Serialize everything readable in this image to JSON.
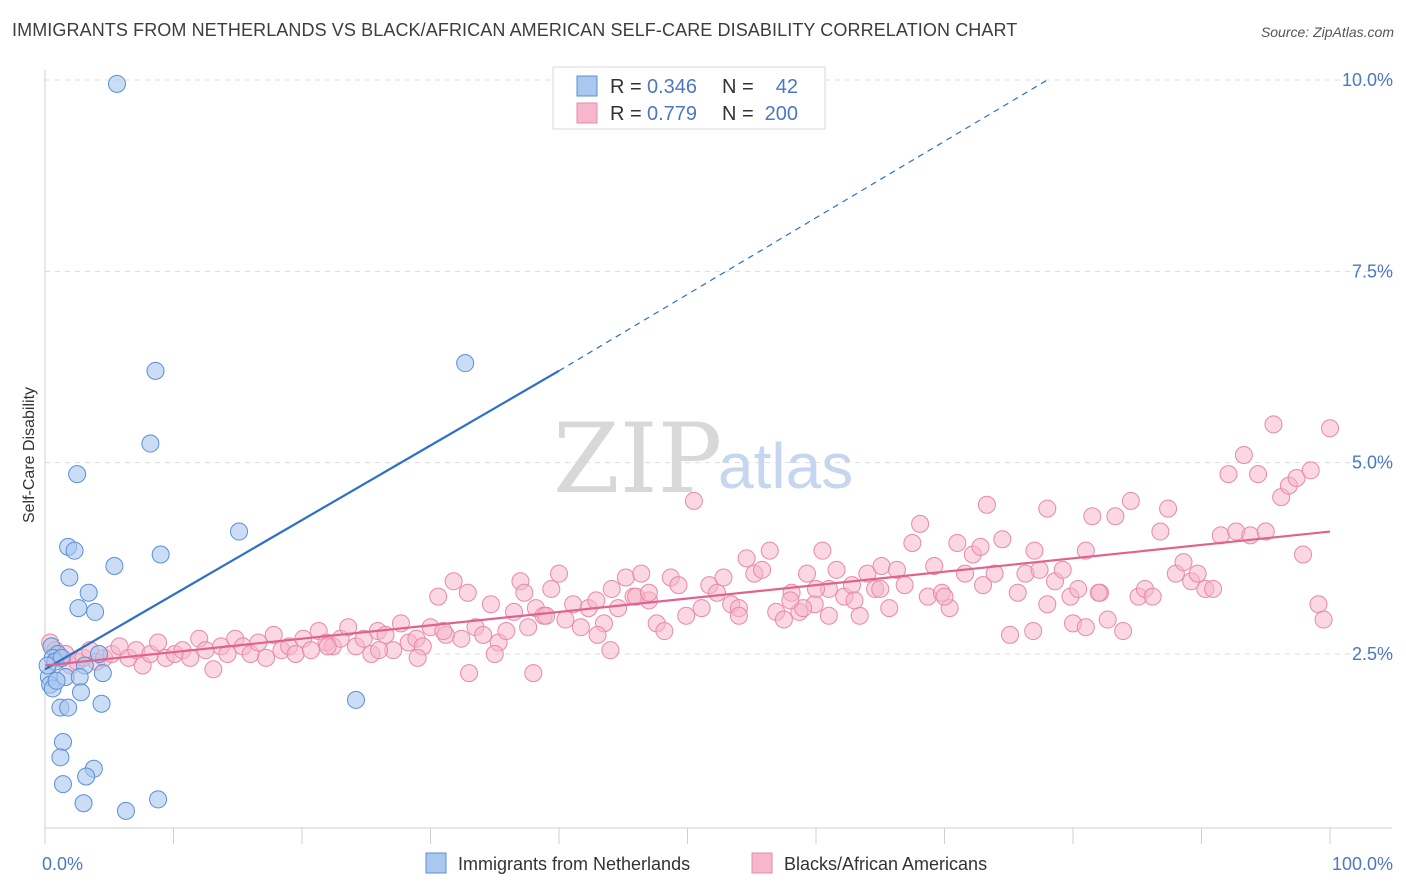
{
  "title": "IMMIGRANTS FROM NETHERLANDS VS BLACK/AFRICAN AMERICAN SELF-CARE DISABILITY CORRELATION CHART",
  "source": "Source: ZipAtlas.com",
  "watermark": {
    "zip": "ZIP",
    "atlas": "atlas"
  },
  "colors": {
    "blue_fill": "#a9c7ef",
    "blue_stroke": "#5a8fd6",
    "blue_line": "#2e6fc9",
    "pink_fill": "#f6b6cb",
    "pink_stroke": "#e889a9",
    "pink_line": "#e0628e",
    "tick_text": "#4d77c4",
    "grid": "#dddddd"
  },
  "legend": {
    "rows": [
      {
        "r_label": "R = ",
        "r_value": "0.346",
        "n_label": "N = ",
        "n_value": "42"
      },
      {
        "r_label": "R = ",
        "r_value": "0.779",
        "n_label": "N = ",
        "n_value": "200"
      }
    ]
  },
  "bottom_legend": [
    "Immigrants from Netherlands",
    "Blacks/African Americans"
  ],
  "chart_data": {
    "type": "scatter",
    "title": "IMMIGRANTS FROM NETHERLANDS VS BLACK/AFRICAN AMERICAN SELF-CARE DISABILITY CORRELATION CHART",
    "xlabel": "",
    "ylabel": "Self-Care Disability",
    "xlim": [
      0,
      100
    ],
    "ylim": [
      0,
      10.5
    ],
    "x_tick_labels": [
      {
        "value": 0,
        "label": "0.0%"
      },
      {
        "value": 100,
        "label": "100.0%"
      }
    ],
    "y_tick_labels": [
      {
        "value": 2.5,
        "label": "2.5%"
      },
      {
        "value": 5.0,
        "label": "5.0%"
      },
      {
        "value": 7.5,
        "label": "7.5%"
      },
      {
        "value": 10.0,
        "label": "10.0%"
      }
    ],
    "x_minor_ticks": [
      0,
      10,
      20,
      30,
      40,
      50,
      60,
      70,
      80,
      90,
      100
    ],
    "grid": true,
    "legend_position": "top-center",
    "series": [
      {
        "name": "Immigrants from Netherlands",
        "R": 0.346,
        "N": 42,
        "trend": {
          "x0": 0,
          "y0": 2.3,
          "x1": 40,
          "y1": 6.2,
          "extend_to_x": 78,
          "extend_y": 10.0
        },
        "points": [
          [
            5.6,
            9.95
          ],
          [
            8.6,
            6.2
          ],
          [
            8.2,
            5.25
          ],
          [
            2.5,
            4.85
          ],
          [
            1.8,
            3.9
          ],
          [
            2.3,
            3.85
          ],
          [
            9.0,
            3.8
          ],
          [
            5.4,
            3.65
          ],
          [
            1.9,
            3.5
          ],
          [
            3.4,
            3.3
          ],
          [
            2.6,
            3.1
          ],
          [
            3.9,
            3.05
          ],
          [
            15.1,
            4.1
          ],
          [
            32.7,
            6.3
          ],
          [
            0.5,
            2.6
          ],
          [
            1.0,
            2.5
          ],
          [
            0.6,
            2.45
          ],
          [
            0.8,
            2.4
          ],
          [
            1.3,
            2.45
          ],
          [
            4.2,
            2.5
          ],
          [
            3.1,
            2.35
          ],
          [
            0.3,
            2.2
          ],
          [
            1.6,
            2.2
          ],
          [
            2.7,
            2.2
          ],
          [
            4.5,
            2.25
          ],
          [
            0.4,
            2.1
          ],
          [
            0.6,
            2.05
          ],
          [
            2.8,
            2.0
          ],
          [
            4.4,
            1.85
          ],
          [
            1.2,
            1.8
          ],
          [
            1.8,
            1.8
          ],
          [
            24.2,
            1.9
          ],
          [
            1.4,
            1.35
          ],
          [
            3.8,
            1.0
          ],
          [
            1.2,
            1.15
          ],
          [
            3.2,
            0.9
          ],
          [
            1.4,
            0.8
          ],
          [
            3.0,
            0.55
          ],
          [
            6.3,
            0.45
          ],
          [
            8.8,
            0.6
          ],
          [
            0.2,
            2.35
          ],
          [
            0.9,
            2.15
          ]
        ]
      },
      {
        "name": "Blacks/African Americans",
        "R": 0.779,
        "N": 200,
        "trend": {
          "x0": 0,
          "y0": 2.35,
          "x1": 100,
          "y1": 4.1
        },
        "points": [
          [
            0.4,
            2.65
          ],
          [
            0.8,
            2.55
          ],
          [
            1.2,
            2.45
          ],
          [
            1.6,
            2.5
          ],
          [
            2.0,
            2.35
          ],
          [
            2.5,
            2.4
          ],
          [
            3.0,
            2.45
          ],
          [
            3.5,
            2.55
          ],
          [
            4.0,
            2.4
          ],
          [
            4.6,
            2.45
          ],
          [
            5.2,
            2.5
          ],
          [
            5.8,
            2.6
          ],
          [
            6.5,
            2.45
          ],
          [
            7.1,
            2.55
          ],
          [
            7.6,
            2.35
          ],
          [
            8.2,
            2.5
          ],
          [
            8.8,
            2.65
          ],
          [
            9.4,
            2.45
          ],
          [
            10.1,
            2.5
          ],
          [
            10.7,
            2.55
          ],
          [
            11.3,
            2.45
          ],
          [
            12.0,
            2.7
          ],
          [
            12.5,
            2.55
          ],
          [
            13.1,
            2.3
          ],
          [
            13.7,
            2.6
          ],
          [
            14.2,
            2.5
          ],
          [
            14.8,
            2.7
          ],
          [
            15.4,
            2.6
          ],
          [
            16.0,
            2.5
          ],
          [
            16.6,
            2.65
          ],
          [
            17.2,
            2.45
          ],
          [
            17.8,
            2.75
          ],
          [
            18.4,
            2.55
          ],
          [
            19.0,
            2.6
          ],
          [
            19.5,
            2.5
          ],
          [
            20.1,
            2.7
          ],
          [
            20.7,
            2.55
          ],
          [
            21.3,
            2.8
          ],
          [
            21.9,
            2.65
          ],
          [
            22.4,
            2.6
          ],
          [
            23.0,
            2.7
          ],
          [
            23.6,
            2.85
          ],
          [
            24.2,
            2.6
          ],
          [
            24.8,
            2.7
          ],
          [
            25.4,
            2.5
          ],
          [
            25.9,
            2.8
          ],
          [
            26.5,
            2.75
          ],
          [
            27.1,
            2.55
          ],
          [
            27.7,
            2.9
          ],
          [
            28.3,
            2.65
          ],
          [
            28.9,
            2.7
          ],
          [
            29.4,
            2.6
          ],
          [
            30.0,
            2.85
          ],
          [
            30.6,
            3.25
          ],
          [
            31.2,
            2.75
          ],
          [
            31.8,
            3.45
          ],
          [
            32.4,
            2.7
          ],
          [
            32.9,
            3.3
          ],
          [
            33.5,
            2.85
          ],
          [
            34.1,
            2.75
          ],
          [
            34.7,
            3.15
          ],
          [
            35.3,
            2.65
          ],
          [
            35.9,
            2.8
          ],
          [
            36.5,
            3.05
          ],
          [
            37.0,
            3.45
          ],
          [
            37.6,
            2.85
          ],
          [
            38.2,
            3.1
          ],
          [
            38.8,
            3.0
          ],
          [
            39.4,
            3.35
          ],
          [
            40.0,
            3.55
          ],
          [
            40.5,
            2.95
          ],
          [
            41.1,
            3.15
          ],
          [
            41.7,
            2.85
          ],
          [
            42.3,
            3.1
          ],
          [
            42.9,
            3.2
          ],
          [
            43.5,
            2.9
          ],
          [
            44.1,
            3.35
          ],
          [
            44.6,
            3.1
          ],
          [
            45.2,
            3.5
          ],
          [
            45.8,
            3.25
          ],
          [
            46.4,
            3.55
          ],
          [
            47.0,
            3.2
          ],
          [
            47.6,
            2.9
          ],
          [
            48.2,
            2.8
          ],
          [
            48.7,
            3.5
          ],
          [
            49.3,
            3.4
          ],
          [
            49.9,
            3.0
          ],
          [
            50.5,
            4.5
          ],
          [
            51.1,
            3.1
          ],
          [
            51.7,
            3.4
          ],
          [
            52.3,
            3.3
          ],
          [
            52.8,
            3.5
          ],
          [
            53.4,
            3.15
          ],
          [
            54.0,
            3.1
          ],
          [
            54.6,
            3.75
          ],
          [
            55.2,
            3.55
          ],
          [
            55.8,
            3.6
          ],
          [
            56.4,
            3.85
          ],
          [
            56.9,
            3.05
          ],
          [
            57.5,
            2.95
          ],
          [
            58.1,
            3.3
          ],
          [
            58.7,
            3.05
          ],
          [
            59.3,
            3.55
          ],
          [
            59.9,
            3.15
          ],
          [
            60.5,
            3.85
          ],
          [
            61.0,
            3.35
          ],
          [
            61.6,
            3.6
          ],
          [
            62.2,
            3.25
          ],
          [
            62.8,
            3.4
          ],
          [
            63.4,
            3.0
          ],
          [
            64.0,
            3.55
          ],
          [
            64.6,
            3.35
          ],
          [
            65.1,
            3.65
          ],
          [
            65.7,
            3.1
          ],
          [
            66.3,
            3.6
          ],
          [
            66.9,
            3.4
          ],
          [
            67.5,
            3.95
          ],
          [
            68.1,
            4.2
          ],
          [
            68.7,
            3.25
          ],
          [
            69.2,
            3.65
          ],
          [
            69.8,
            3.3
          ],
          [
            70.4,
            3.1
          ],
          [
            71.0,
            3.95
          ],
          [
            71.6,
            3.55
          ],
          [
            72.2,
            3.8
          ],
          [
            72.8,
            3.9
          ],
          [
            73.3,
            4.45
          ],
          [
            73.9,
            3.55
          ],
          [
            74.5,
            4.0
          ],
          [
            75.1,
            2.75
          ],
          [
            75.7,
            3.3
          ],
          [
            76.3,
            3.55
          ],
          [
            76.9,
            2.8
          ],
          [
            77.4,
            3.6
          ],
          [
            78.0,
            4.4
          ],
          [
            78.6,
            3.45
          ],
          [
            79.2,
            3.6
          ],
          [
            79.8,
            3.25
          ],
          [
            80.4,
            3.35
          ],
          [
            81.0,
            3.85
          ],
          [
            81.5,
            4.3
          ],
          [
            82.1,
            3.3
          ],
          [
            82.7,
            2.95
          ],
          [
            83.3,
            4.3
          ],
          [
            83.9,
            2.8
          ],
          [
            84.5,
            4.5
          ],
          [
            85.1,
            3.25
          ],
          [
            85.6,
            3.35
          ],
          [
            86.2,
            3.25
          ],
          [
            86.8,
            4.1
          ],
          [
            87.4,
            4.4
          ],
          [
            88.0,
            3.55
          ],
          [
            88.6,
            3.7
          ],
          [
            89.2,
            3.45
          ],
          [
            89.7,
            3.55
          ],
          [
            90.3,
            3.35
          ],
          [
            90.9,
            3.35
          ],
          [
            91.5,
            4.05
          ],
          [
            92.1,
            4.85
          ],
          [
            92.7,
            4.1
          ],
          [
            93.3,
            5.1
          ],
          [
            93.8,
            4.05
          ],
          [
            94.4,
            4.85
          ],
          [
            95.0,
            4.1
          ],
          [
            95.6,
            5.5
          ],
          [
            96.2,
            4.55
          ],
          [
            96.8,
            4.7
          ],
          [
            97.4,
            4.8
          ],
          [
            97.9,
            3.8
          ],
          [
            98.5,
            4.9
          ],
          [
            99.1,
            3.15
          ],
          [
            99.5,
            2.95
          ],
          [
            100.0,
            5.45
          ],
          [
            37.3,
            3.3
          ],
          [
            38.0,
            2.25
          ],
          [
            39.0,
            3.0
          ],
          [
            43.0,
            2.75
          ],
          [
            46.0,
            3.25
          ],
          [
            47.0,
            3.3
          ],
          [
            54.0,
            3.0
          ],
          [
            59.0,
            3.1
          ],
          [
            60.0,
            3.35
          ],
          [
            61.0,
            3.0
          ],
          [
            63.0,
            3.2
          ],
          [
            65.0,
            3.35
          ],
          [
            70.0,
            3.25
          ],
          [
            73.0,
            3.4
          ],
          [
            77.0,
            3.85
          ],
          [
            78.0,
            3.15
          ],
          [
            80.0,
            2.9
          ],
          [
            81.0,
            2.85
          ],
          [
            82.0,
            3.3
          ],
          [
            22.0,
            2.6
          ],
          [
            26.0,
            2.55
          ],
          [
            29.0,
            2.45
          ],
          [
            33.0,
            2.25
          ],
          [
            44.0,
            2.55
          ],
          [
            31.0,
            2.8
          ],
          [
            35.0,
            2.5
          ],
          [
            58.0,
            3.2
          ]
        ]
      }
    ]
  }
}
